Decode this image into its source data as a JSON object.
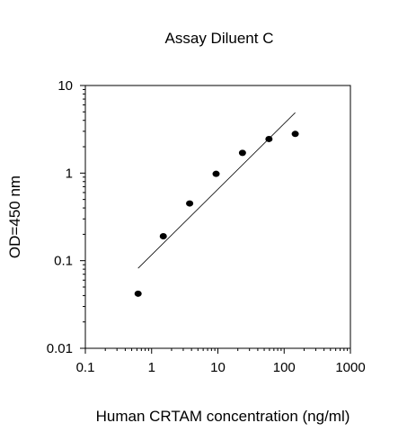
{
  "chart_data": {
    "type": "scatter",
    "title": "Assay Diluent C",
    "xlabel": "Human CRTAM concentration (ng/ml)",
    "ylabel": "OD=450 nm",
    "x_scale": "log",
    "y_scale": "log",
    "xlim": [
      0.1,
      1000
    ],
    "ylim": [
      0.01,
      10
    ],
    "x_ticks": [
      0.1,
      1,
      10,
      100,
      1000
    ],
    "x_tick_labels": [
      "0.1",
      "1",
      "10",
      "100",
      "1000"
    ],
    "y_ticks": [
      0.01,
      0.1,
      1,
      10
    ],
    "y_tick_labels": [
      "0.01",
      "0.1",
      "1",
      "10"
    ],
    "grid": false,
    "series": [
      {
        "x": [
          0.625,
          1.5,
          3.75,
          9.4,
          23.5,
          59,
          147
        ],
        "y": [
          0.042,
          0.19,
          0.45,
          0.98,
          1.7,
          2.45,
          2.8
        ]
      }
    ],
    "fit_line": {
      "x": [
        0.625,
        147
      ],
      "y": [
        0.082,
        4.9
      ]
    },
    "colors": {
      "marker": "#000000",
      "line": "#000000",
      "axes": "#000000"
    }
  }
}
